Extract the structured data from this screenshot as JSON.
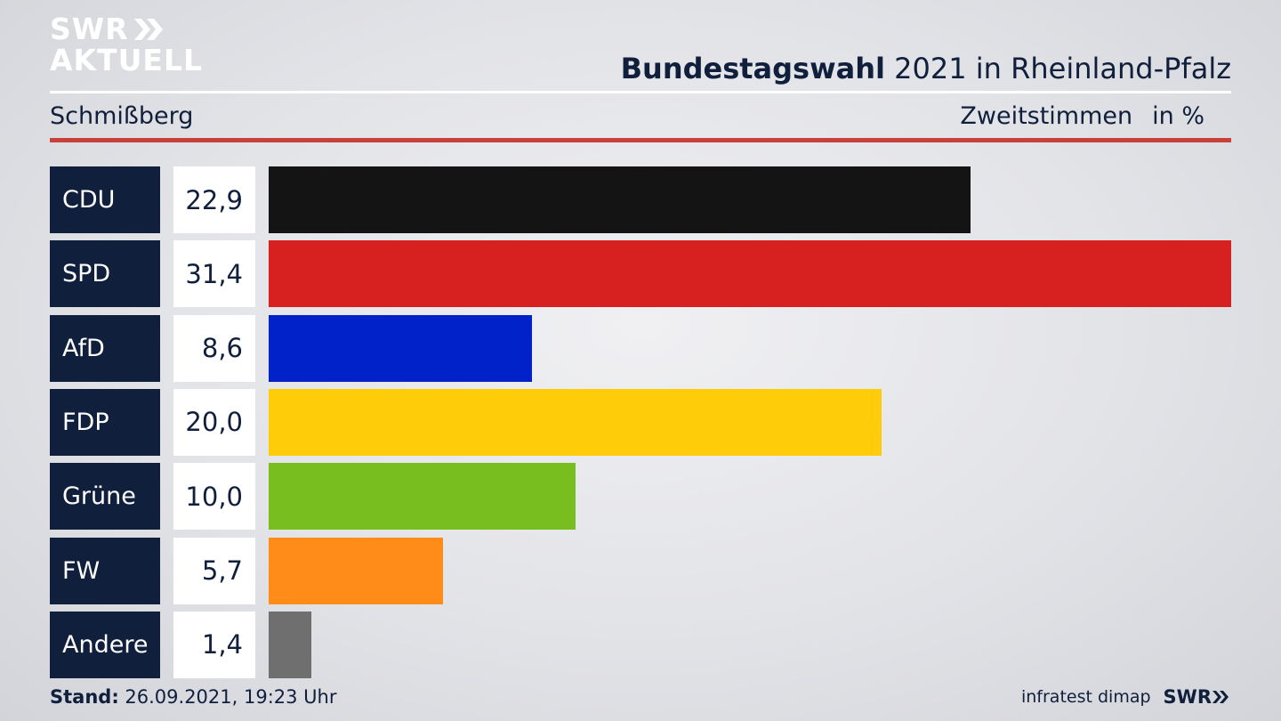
{
  "logo": {
    "line1": "SWR",
    "line2": "AKTUELL"
  },
  "header": {
    "title_bold": "Bundestagswahl",
    "title_rest": " 2021 in Rheinland-Pfalz",
    "subtitle": "Schmißberg",
    "measure": "Zweitstimmen",
    "unit": "in %"
  },
  "chart_data": {
    "type": "bar",
    "orientation": "horizontal",
    "categories": [
      "CDU",
      "SPD",
      "AfD",
      "FDP",
      "Grüne",
      "FW",
      "Andere"
    ],
    "values": [
      22.9,
      31.4,
      8.6,
      20.0,
      10.0,
      5.7,
      1.4
    ],
    "value_labels": [
      "22,9",
      "31,4",
      "8,6",
      "20,0",
      "10,0",
      "5,7",
      "1,4"
    ],
    "colors": [
      "#141414",
      "#d72020",
      "#0022c8",
      "#ffcc0a",
      "#78be1e",
      "#ff8c19",
      "#6f6f6f"
    ],
    "xlim": [
      0,
      31.4
    ]
  },
  "footer": {
    "stand_label": "Stand:",
    "stand_value": " 26.09.2021, 19:23 Uhr",
    "source": "infratest dimap",
    "brand": "SWR"
  }
}
